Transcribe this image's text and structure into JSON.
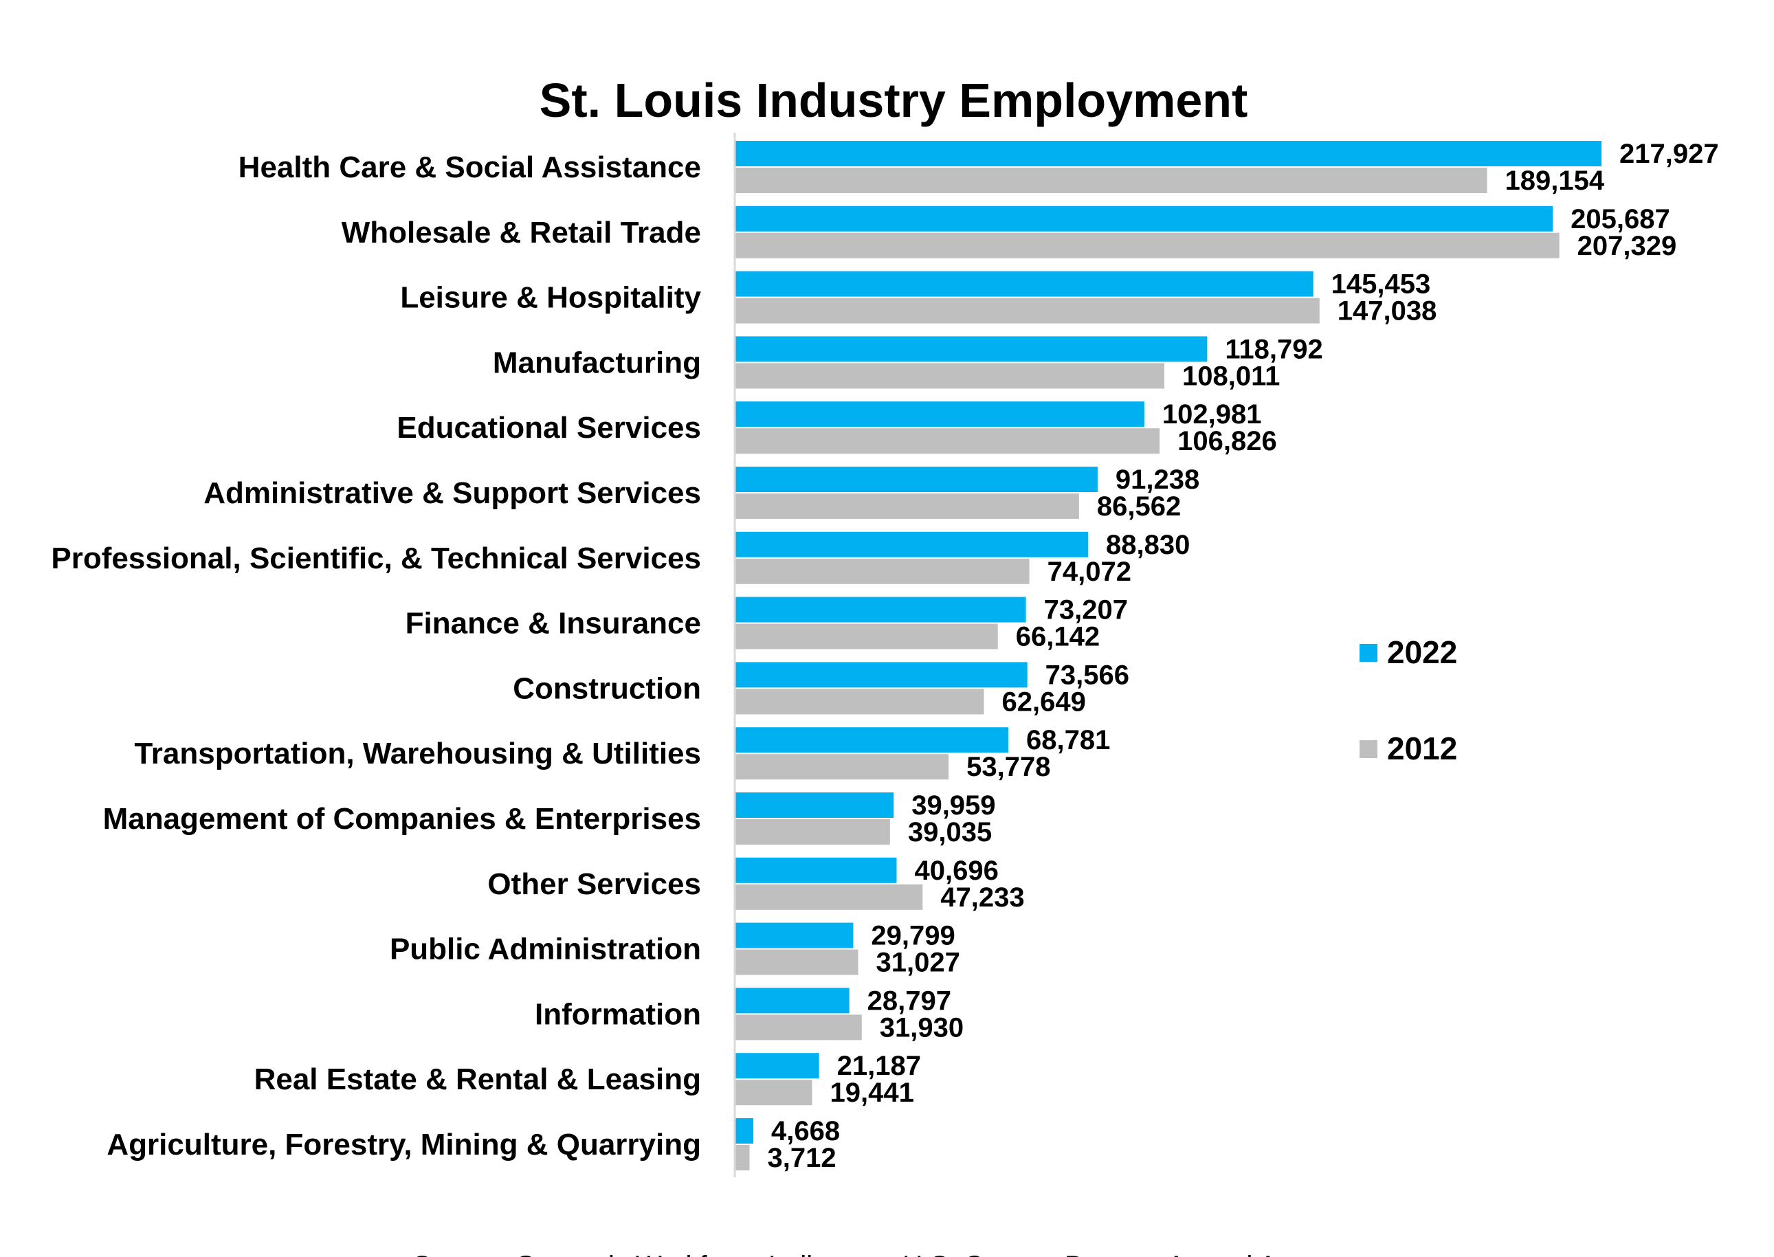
{
  "chart_data": {
    "type": "bar",
    "orientation": "horizontal",
    "title": "St. Louis Industry Employment",
    "categories": [
      "Health Care & Social Assistance",
      "Wholesale & Retail Trade",
      "Leisure & Hospitality",
      "Manufacturing",
      "Educational Services",
      "Administrative & Support Services",
      "Professional, Scientific, & Technical Services",
      "Finance & Insurance",
      "Construction",
      "Transportation, Warehousing & Utilities",
      "Management of Companies & Enterprises",
      "Other Services",
      "Public Administration",
      "Information",
      "Real Estate & Rental & Leasing",
      "Agriculture, Forestry, Mining & Quarrying"
    ],
    "series": [
      {
        "name": "2022",
        "color": "#00b0f0",
        "values": [
          217927,
          205687,
          145453,
          118792,
          102981,
          91238,
          88830,
          73207,
          73566,
          68781,
          39959,
          40696,
          29799,
          28797,
          21187,
          4668
        ],
        "labels": [
          "217,927",
          "205,687",
          "145,453",
          "118,792",
          "102,981",
          "91,238",
          "88,830",
          "73,207",
          "73,566",
          "68,781",
          "39,959",
          "40,696",
          "29,799",
          "28,797",
          "21,187",
          "4,668"
        ]
      },
      {
        "name": "2012",
        "color": "#bfbfbf",
        "values": [
          189154,
          207329,
          147038,
          108011,
          106826,
          86562,
          74072,
          66142,
          62649,
          53778,
          39035,
          47233,
          31027,
          31930,
          19441,
          3712
        ],
        "labels": [
          "189,154",
          "207,329",
          "147,038",
          "108,011",
          "106,826",
          "86,562",
          "74,072",
          "66,142",
          "62,649",
          "53,778",
          "39,035",
          "47,233",
          "31,027",
          "31,930",
          "19,441",
          "3,712"
        ]
      }
    ],
    "xlim": [
      0,
      218000
    ],
    "axis_color": "#d9d9d9",
    "grid": false,
    "legend": {
      "entries": [
        "2022",
        "2012"
      ],
      "placement": "right"
    },
    "xlabel": "",
    "ylabel": "",
    "source": "Source: Quarterly Workforce Indicators, U.S. Census Bureau, Annual Averages"
  }
}
